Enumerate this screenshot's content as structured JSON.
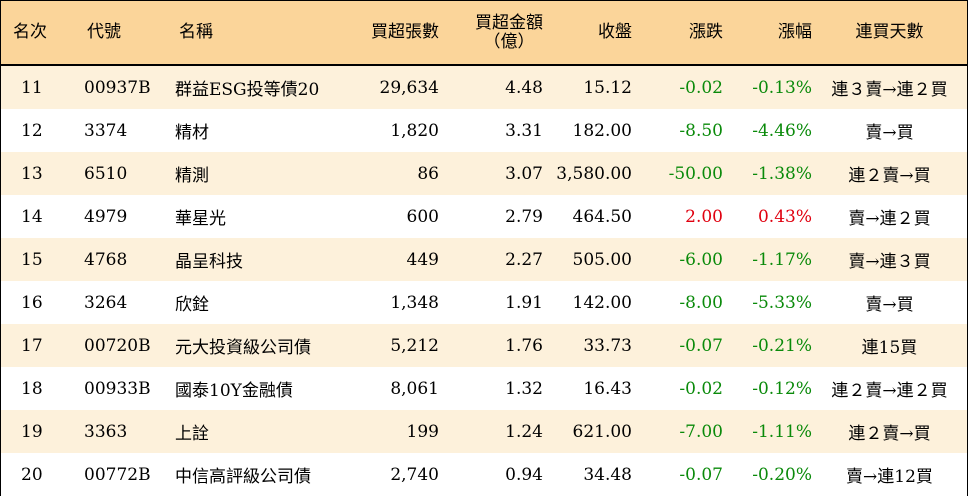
{
  "table": {
    "headers": {
      "rank": "名次",
      "code": "代號",
      "name": "名稱",
      "volume": "買超張數",
      "amount_line1": "買超金額",
      "amount_line2": "（億）",
      "close": "收盤",
      "change": "漲跌",
      "pct": "漲幅",
      "days": "連買天數"
    },
    "rows": [
      {
        "rank": "11",
        "code": "00937B",
        "name": "群益ESG投等債20",
        "volume": "29,634",
        "amount": "4.48",
        "close": "15.12",
        "change": "-0.02",
        "pct": "-0.13%",
        "days": "連３賣→連２買",
        "dir": "down"
      },
      {
        "rank": "12",
        "code": "3374",
        "name": "精材",
        "volume": "1,820",
        "amount": "3.31",
        "close": "182.00",
        "change": "-8.50",
        "pct": "-4.46%",
        "days": "賣→買",
        "dir": "down"
      },
      {
        "rank": "13",
        "code": "6510",
        "name": "精測",
        "volume": "86",
        "amount": "3.07",
        "close": "3,580.00",
        "change": "-50.00",
        "pct": "-1.38%",
        "days": "連２賣→買",
        "dir": "down"
      },
      {
        "rank": "14",
        "code": "4979",
        "name": "華星光",
        "volume": "600",
        "amount": "2.79",
        "close": "464.50",
        "change": "2.00",
        "pct": "0.43%",
        "days": "賣→連２買",
        "dir": "up"
      },
      {
        "rank": "15",
        "code": "4768",
        "name": "晶呈科技",
        "volume": "449",
        "amount": "2.27",
        "close": "505.00",
        "change": "-6.00",
        "pct": "-1.17%",
        "days": "賣→連３買",
        "dir": "down"
      },
      {
        "rank": "16",
        "code": "3264",
        "name": "欣銓",
        "volume": "1,348",
        "amount": "1.91",
        "close": "142.00",
        "change": "-8.00",
        "pct": "-5.33%",
        "days": "賣→買",
        "dir": "down"
      },
      {
        "rank": "17",
        "code": "00720B",
        "name": "元大投資級公司債",
        "volume": "5,212",
        "amount": "1.76",
        "close": "33.73",
        "change": "-0.07",
        "pct": "-0.21%",
        "days": "連15買",
        "dir": "down"
      },
      {
        "rank": "18",
        "code": "00933B",
        "name": "國泰10Y金融債",
        "volume": "8,061",
        "amount": "1.32",
        "close": "16.43",
        "change": "-0.02",
        "pct": "-0.12%",
        "days": "連２賣→連２買",
        "dir": "down"
      },
      {
        "rank": "19",
        "code": "3363",
        "name": "上詮",
        "volume": "199",
        "amount": "1.24",
        "close": "621.00",
        "change": "-7.00",
        "pct": "-1.11%",
        "days": "連２賣→買",
        "dir": "down"
      },
      {
        "rank": "20",
        "code": "00772B",
        "name": "中信高評級公司債",
        "volume": "2,740",
        "amount": "0.94",
        "close": "34.48",
        "change": "-0.07",
        "pct": "-0.20%",
        "days": "賣→連12買",
        "dir": "down"
      }
    ],
    "colors": {
      "header_bg": "#fbd59a",
      "odd_row_bg": "#fdf1db",
      "even_row_bg": "#ffffff",
      "up": "#e0000f",
      "down": "#0a8a0a"
    }
  }
}
